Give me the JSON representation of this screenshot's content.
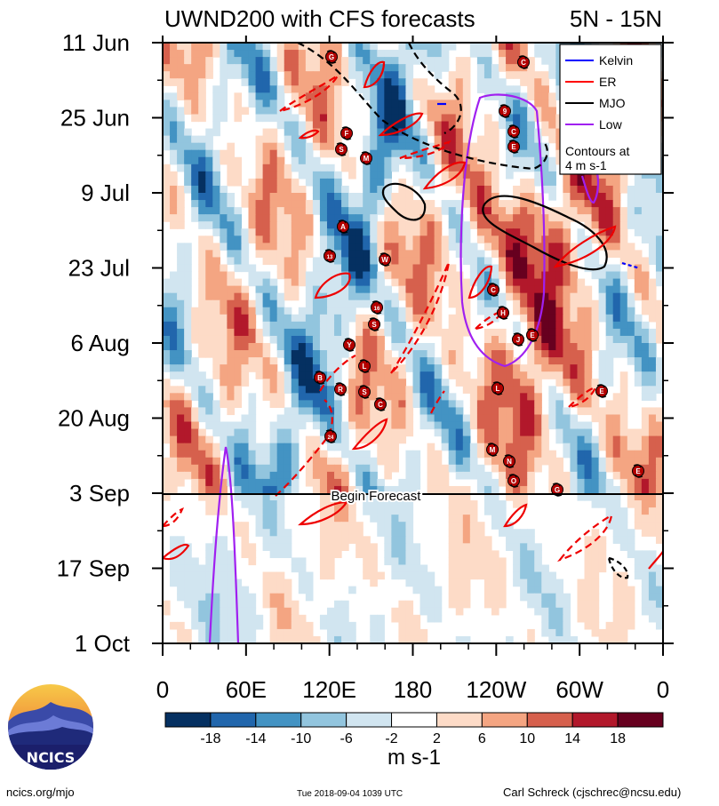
{
  "chart_data": {
    "type": "heatmap",
    "title": "UWND200 with CFS forecasts",
    "region": "5N - 15N",
    "x_ticks": [
      "0",
      "60E",
      "120E",
      "180",
      "120W",
      "60W",
      "0"
    ],
    "y_ticks": [
      "11 Jun",
      "25 Jun",
      "9 Jul",
      "23 Jul",
      "6 Aug",
      "20 Aug",
      "3 Sep",
      "17 Sep",
      "1 Oct"
    ],
    "forecast_label": "Begin Forecast",
    "legend": [
      {
        "name": "Kelvin",
        "color": "#0000ff"
      },
      {
        "name": "ER",
        "color": "#ff0000"
      },
      {
        "name": "MJO",
        "color": "#000000"
      },
      {
        "name": "Low",
        "color": "#a020f0"
      }
    ],
    "contour_note_line1": "Contours at",
    "contour_note_line2": "4 m s-1",
    "colorbar": {
      "labels": [
        "-18",
        "-14",
        "-10",
        "-6",
        "-2",
        "2",
        "6",
        "10",
        "14",
        "18"
      ],
      "colors": [
        "#053061",
        "#2166ac",
        "#4393c3",
        "#92c5de",
        "#d1e5f0",
        "#ffffff",
        "#fddbc7",
        "#f4a582",
        "#d6604d",
        "#b2182b",
        "#67001f"
      ],
      "units": "m s-1"
    },
    "storm_labels": [
      "G",
      "C",
      "S",
      "F",
      "M",
      "C",
      "E",
      "A",
      "13",
      "W",
      "16",
      "S",
      "Y",
      "L",
      "B",
      "R",
      "S",
      "C",
      "24",
      "E",
      "C",
      "H",
      "J",
      "E",
      "L",
      "M",
      "N",
      "O",
      "E",
      "G",
      "9"
    ]
  },
  "footer": {
    "left": "ncics.org/mjo",
    "center": "Tue 2018-09-04 1039 UTC",
    "right": "Carl Schreck (cjschrec@ncsu.edu)",
    "logo": "NCICS"
  }
}
